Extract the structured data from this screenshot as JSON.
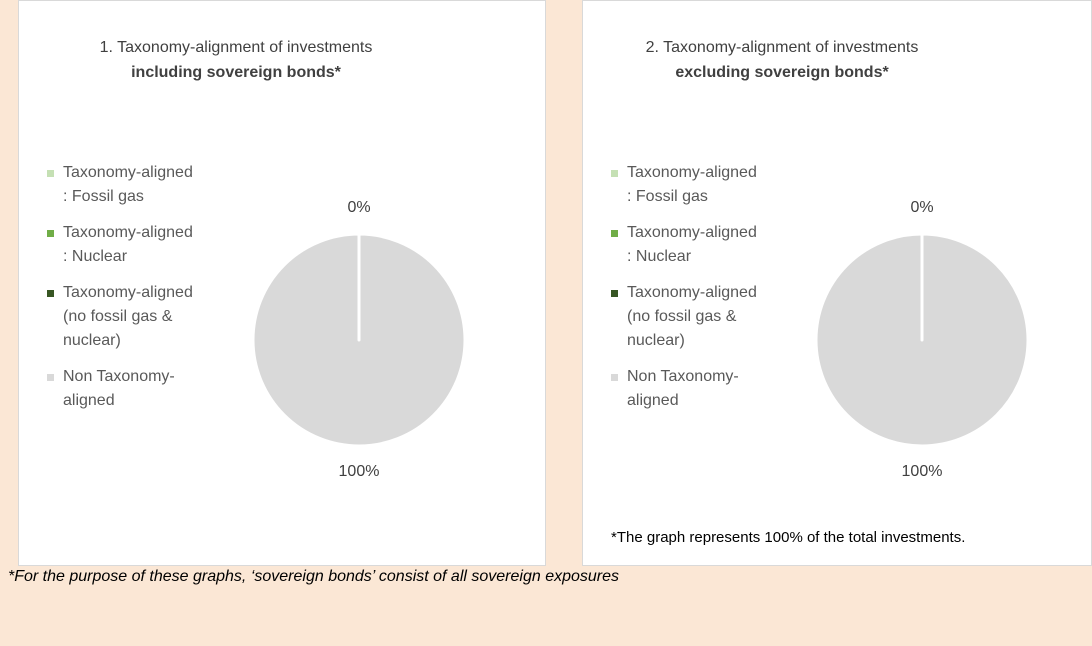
{
  "chart_data": [
    {
      "type": "pie",
      "title": "1. Taxonomy-alignment of investments",
      "subtitle": "including sovereign bonds*",
      "categories": [
        "Taxonomy-aligned : Fossil gas",
        "Taxonomy-aligned : Nuclear",
        "Taxonomy-aligned (no fossil gas & nuclear)",
        "Non Taxonomy-aligned"
      ],
      "values": [
        0,
        0,
        0,
        100
      ],
      "value_labels": [
        null,
        null,
        "0%",
        "100%"
      ],
      "colors": [
        "#c5e0b4",
        "#70ad47",
        "#375623",
        "#d9d9d9"
      ]
    },
    {
      "type": "pie",
      "title": "2. Taxonomy-alignment of investments",
      "subtitle": "excluding sovereign bonds*",
      "categories": [
        "Taxonomy-aligned : Fossil gas",
        "Taxonomy-aligned : Nuclear",
        "Taxonomy-aligned (no fossil gas & nuclear)",
        "Non Taxonomy-aligned"
      ],
      "values": [
        0,
        0,
        0,
        100
      ],
      "value_labels": [
        null,
        null,
        "0%",
        "100%"
      ],
      "colors": [
        "#c5e0b4",
        "#70ad47",
        "#375623",
        "#d9d9d9"
      ],
      "note": "*The graph represents 100% of the total investments."
    }
  ],
  "footnote": "*For the purpose of these graphs, ‘sovereign bonds’ consist of  all sovereign exposures"
}
